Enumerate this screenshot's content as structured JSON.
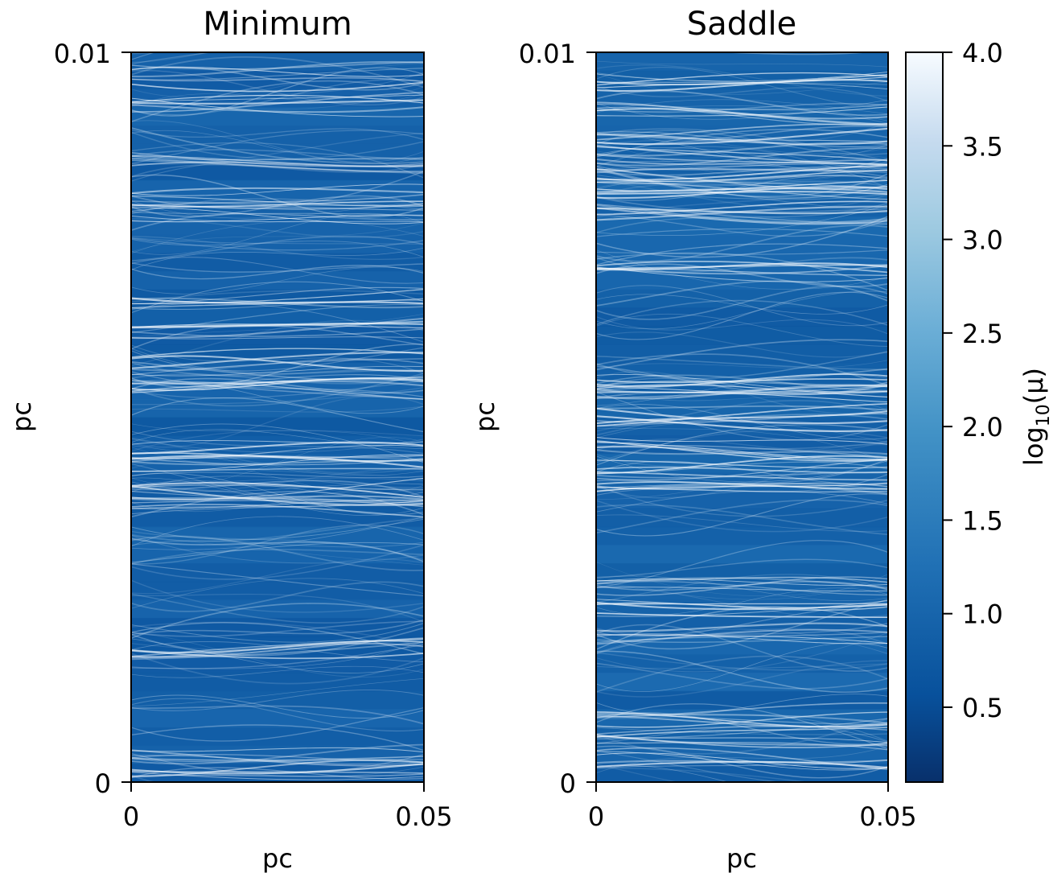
{
  "chart_data": {
    "type": "heatmap",
    "colormap": "Blues_r",
    "colors": {
      "low": "#08306b",
      "mid": "#2171b5",
      "high": "#f7fbff",
      "frame": "#000000"
    },
    "panels": [
      {
        "title": "Minimum",
        "xlabel": "pc",
        "ylabel": "pc",
        "xlim": [
          0,
          0.05
        ],
        "ylim": [
          0,
          0.01
        ],
        "xtick_labels": [
          "0",
          "0.05"
        ],
        "ytick_labels": [
          "0",
          "0.01"
        ],
        "bright_caustic_bands_y": [
          0.0097,
          0.0093,
          0.0085,
          0.008,
          0.0078,
          0.0066,
          0.0062,
          0.0057,
          0.0054,
          0.0045,
          0.0043,
          0.004,
          0.0038,
          0.0018,
          0.0004,
          0.0002
        ],
        "base_log_mu": 0.9
      },
      {
        "title": "Saddle",
        "xlabel": "pc",
        "ylabel": "pc",
        "xlim": [
          0,
          0.05
        ],
        "ylim": [
          0,
          0.01
        ],
        "xtick_labels": [
          "0",
          "0.05"
        ],
        "ytick_labels": [
          "0",
          "0.01"
        ],
        "bright_caustic_bands_y": [
          0.0096,
          0.0092,
          0.0089,
          0.0086,
          0.0083,
          0.0081,
          0.0078,
          0.007,
          0.0055,
          0.0053,
          0.005,
          0.0046,
          0.0043,
          0.004,
          0.0027,
          0.0024,
          0.002,
          0.0009,
          0.0006,
          0.0003
        ],
        "base_log_mu": 1.0
      }
    ],
    "colorbar": {
      "label_text": "log",
      "label_subscript": "10",
      "label_suffix": "(μ)",
      "range": [
        0.1,
        4.0
      ],
      "ticks": [
        0.5,
        1.0,
        1.5,
        2.0,
        2.5,
        3.0,
        3.5,
        4.0
      ],
      "tick_labels": [
        "0.5",
        "1.0",
        "1.5",
        "2.0",
        "2.5",
        "3.0",
        "3.5",
        "4.0"
      ]
    }
  }
}
